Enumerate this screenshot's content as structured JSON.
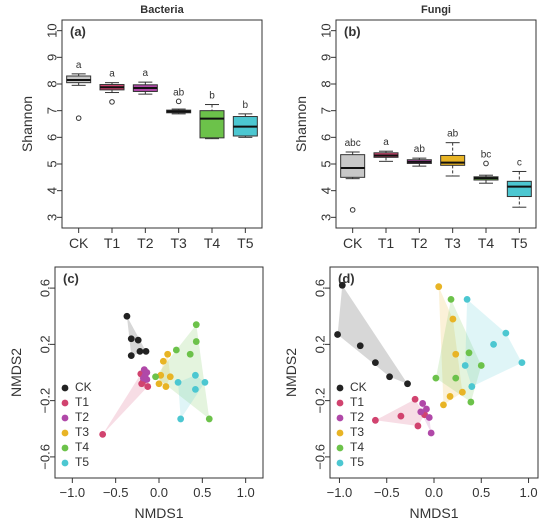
{
  "figure": {
    "background": "#ffffff"
  },
  "chart_data": [
    {
      "id": "a",
      "type": "box",
      "panel_label": "(a)",
      "title": "Bacteria",
      "xlabel": "",
      "ylabel": "Shannon",
      "ylim": [
        2.6,
        10.4
      ],
      "yticks": [
        3,
        4,
        5,
        6,
        7,
        8,
        9,
        10
      ],
      "categories": [
        "CK",
        "T1",
        "T2",
        "T3",
        "T4",
        "T5"
      ],
      "colors": [
        "#c8c8c8",
        "#d1436f",
        "#b048a8",
        "#e8b425",
        "#6cc24a",
        "#4cc7d1"
      ],
      "boxes": [
        {
          "min": 7.95,
          "q1": 8.05,
          "median": 8.15,
          "q3": 8.3,
          "max": 8.38,
          "outliers": [
            6.72
          ],
          "letter": "a"
        },
        {
          "min": 7.68,
          "q1": 7.78,
          "median": 7.88,
          "q3": 7.98,
          "max": 8.05,
          "outliers": [
            7.33
          ],
          "letter": "a"
        },
        {
          "min": 7.62,
          "q1": 7.72,
          "median": 7.85,
          "q3": 7.97,
          "max": 8.07,
          "outliers": [],
          "letter": "a"
        },
        {
          "min": 6.88,
          "q1": 6.92,
          "median": 6.97,
          "q3": 7.02,
          "max": 7.06,
          "outliers": [
            7.35
          ],
          "letter": "ab"
        },
        {
          "min": 5.95,
          "q1": 5.98,
          "median": 6.7,
          "q3": 7.0,
          "max": 7.23,
          "outliers": [],
          "letter": "b"
        },
        {
          "min": 6.0,
          "q1": 6.05,
          "median": 6.4,
          "q3": 6.78,
          "max": 6.88,
          "outliers": [],
          "letter": "b"
        }
      ]
    },
    {
      "id": "b",
      "type": "box",
      "panel_label": "(b)",
      "title": "Fungi",
      "xlabel": "",
      "ylabel": "Shannon",
      "ylim": [
        2.6,
        10.4
      ],
      "yticks": [
        3,
        4,
        5,
        6,
        7,
        8,
        9,
        10
      ],
      "categories": [
        "CK",
        "T1",
        "T2",
        "T3",
        "T4",
        "T5"
      ],
      "colors": [
        "#c8c8c8",
        "#d1436f",
        "#b048a8",
        "#e8b425",
        "#6cc24a",
        "#4cc7d1"
      ],
      "boxes": [
        {
          "min": 4.45,
          "q1": 4.5,
          "median": 4.85,
          "q3": 5.35,
          "max": 5.45,
          "outliers": [
            3.28
          ],
          "letter": "abc"
        },
        {
          "min": 5.1,
          "q1": 5.25,
          "median": 5.32,
          "q3": 5.42,
          "max": 5.48,
          "outliers": [],
          "letter": "a"
        },
        {
          "min": 4.92,
          "q1": 5.02,
          "median": 5.08,
          "q3": 5.16,
          "max": 5.22,
          "outliers": [],
          "letter": "ab"
        },
        {
          "min": 4.55,
          "q1": 4.95,
          "median": 5.05,
          "q3": 5.32,
          "max": 5.8,
          "outliers": [],
          "letter": "ab"
        },
        {
          "min": 4.28,
          "q1": 4.4,
          "median": 4.47,
          "q3": 4.52,
          "max": 4.58,
          "outliers": [
            5.02
          ],
          "letter": "bc"
        },
        {
          "min": 3.38,
          "q1": 3.78,
          "median": 4.15,
          "q3": 4.35,
          "max": 4.72,
          "outliers": [],
          "letter": "c"
        }
      ]
    },
    {
      "id": "c",
      "type": "scatter",
      "panel_label": "(c)",
      "title": "",
      "xlabel": "NMDS1",
      "ylabel": "NMDS2",
      "xlim": [
        -1.2,
        1.2
      ],
      "ylim": [
        -0.75,
        0.75
      ],
      "xticks": [
        -1.0,
        -0.5,
        0.0,
        0.5,
        1.0
      ],
      "yticks": [
        -0.6,
        -0.2,
        0.2,
        0.6
      ],
      "xtick_labels": [
        "−1.0",
        "−0.5",
        "0.0",
        "0.5",
        "1.0"
      ],
      "ytick_labels": [
        "−0.6",
        "−0.2",
        "0.2",
        "0.6"
      ],
      "legend_position": "bottom-left",
      "series": [
        {
          "name": "CK",
          "color": "#222222",
          "points": [
            [
              -0.37,
              0.4
            ],
            [
              -0.32,
              0.24
            ],
            [
              -0.32,
              0.12
            ],
            [
              -0.22,
              0.15
            ],
            [
              -0.15,
              0.15
            ],
            [
              -0.24,
              0.23
            ]
          ]
        },
        {
          "name": "T1",
          "color": "#d1436f",
          "points": [
            [
              -0.65,
              -0.44
            ],
            [
              -0.21,
              -0.01
            ],
            [
              -0.18,
              -0.06
            ],
            [
              -0.13,
              -0.1
            ],
            [
              -0.2,
              -0.08
            ]
          ]
        },
        {
          "name": "T2",
          "color": "#b048a8",
          "points": [
            [
              -0.17,
              0.02
            ],
            [
              -0.14,
              0.0
            ],
            [
              -0.18,
              -0.04
            ],
            [
              -0.14,
              -0.05
            ],
            [
              -0.16,
              -0.02
            ]
          ]
        },
        {
          "name": "T3",
          "color": "#e8b425",
          "points": [
            [
              0.05,
              0.08
            ],
            [
              0.1,
              0.13
            ],
            [
              0.02,
              -0.02
            ],
            [
              0.08,
              -0.1
            ],
            [
              0.0,
              -0.08
            ],
            [
              0.13,
              -0.03
            ]
          ]
        },
        {
          "name": "T4",
          "color": "#6cc24a",
          "points": [
            [
              0.43,
              0.34
            ],
            [
              0.43,
              0.22
            ],
            [
              0.36,
              0.13
            ],
            [
              0.2,
              0.16
            ],
            [
              0.58,
              -0.33
            ],
            [
              -0.04,
              -0.03
            ]
          ]
        },
        {
          "name": "T5",
          "color": "#4cc7d1",
          "points": [
            [
              0.42,
              -0.02
            ],
            [
              0.53,
              -0.07
            ],
            [
              0.42,
              -0.12
            ],
            [
              0.22,
              -0.07
            ],
            [
              0.25,
              -0.33
            ]
          ]
        }
      ]
    },
    {
      "id": "d",
      "type": "scatter",
      "panel_label": "(d)",
      "title": "",
      "xlabel": "NMDS1",
      "ylabel": "NMDS2",
      "xlim": [
        -1.1,
        1.1
      ],
      "ylim": [
        -0.75,
        0.75
      ],
      "xticks": [
        -1.0,
        -0.5,
        0.0,
        0.5,
        1.0
      ],
      "yticks": [
        -0.6,
        -0.2,
        0.2,
        0.6
      ],
      "xtick_labels": [
        "−1.0",
        "−0.5",
        "0.0",
        "0.5",
        "1.0"
      ],
      "ytick_labels": [
        "−0.6",
        "−0.2",
        "0.2",
        "0.6"
      ],
      "legend_position": "bottom-left",
      "series": [
        {
          "name": "CK",
          "color": "#222222",
          "points": [
            [
              -0.97,
              0.62
            ],
            [
              -1.02,
              0.27
            ],
            [
              -0.78,
              0.19
            ],
            [
              -0.62,
              0.07
            ],
            [
              -0.47,
              -0.03
            ],
            [
              -0.28,
              -0.08
            ]
          ]
        },
        {
          "name": "T1",
          "color": "#d1436f",
          "points": [
            [
              -0.62,
              -0.34
            ],
            [
              -0.35,
              -0.31
            ],
            [
              -0.2,
              -0.19
            ],
            [
              -0.17,
              -0.38
            ],
            [
              -0.1,
              -0.3
            ]
          ]
        },
        {
          "name": "T2",
          "color": "#b048a8",
          "points": [
            [
              -0.14,
              -0.28
            ],
            [
              -0.05,
              -0.32
            ],
            [
              -0.08,
              -0.26
            ],
            [
              -0.12,
              -0.22
            ],
            [
              -0.03,
              -0.43
            ]
          ]
        },
        {
          "name": "T3",
          "color": "#e8b425",
          "points": [
            [
              0.05,
              0.61
            ],
            [
              0.17,
              -0.17
            ],
            [
              0.1,
              -0.23
            ],
            [
              0.23,
              0.13
            ],
            [
              0.3,
              -0.14
            ],
            [
              0.2,
              0.38
            ]
          ]
        },
        {
          "name": "T4",
          "color": "#6cc24a",
          "points": [
            [
              0.18,
              0.52
            ],
            [
              0.23,
              -0.04
            ],
            [
              0.37,
              0.14
            ],
            [
              0.5,
              0.05
            ],
            [
              0.39,
              -0.21
            ],
            [
              0.02,
              -0.04
            ]
          ]
        },
        {
          "name": "T5",
          "color": "#4cc7d1",
          "points": [
            [
              0.35,
              0.52
            ],
            [
              0.63,
              0.2
            ],
            [
              0.76,
              0.28
            ],
            [
              0.93,
              0.07
            ],
            [
              0.33,
              0.05
            ],
            [
              0.4,
              -0.1
            ]
          ]
        }
      ]
    }
  ]
}
